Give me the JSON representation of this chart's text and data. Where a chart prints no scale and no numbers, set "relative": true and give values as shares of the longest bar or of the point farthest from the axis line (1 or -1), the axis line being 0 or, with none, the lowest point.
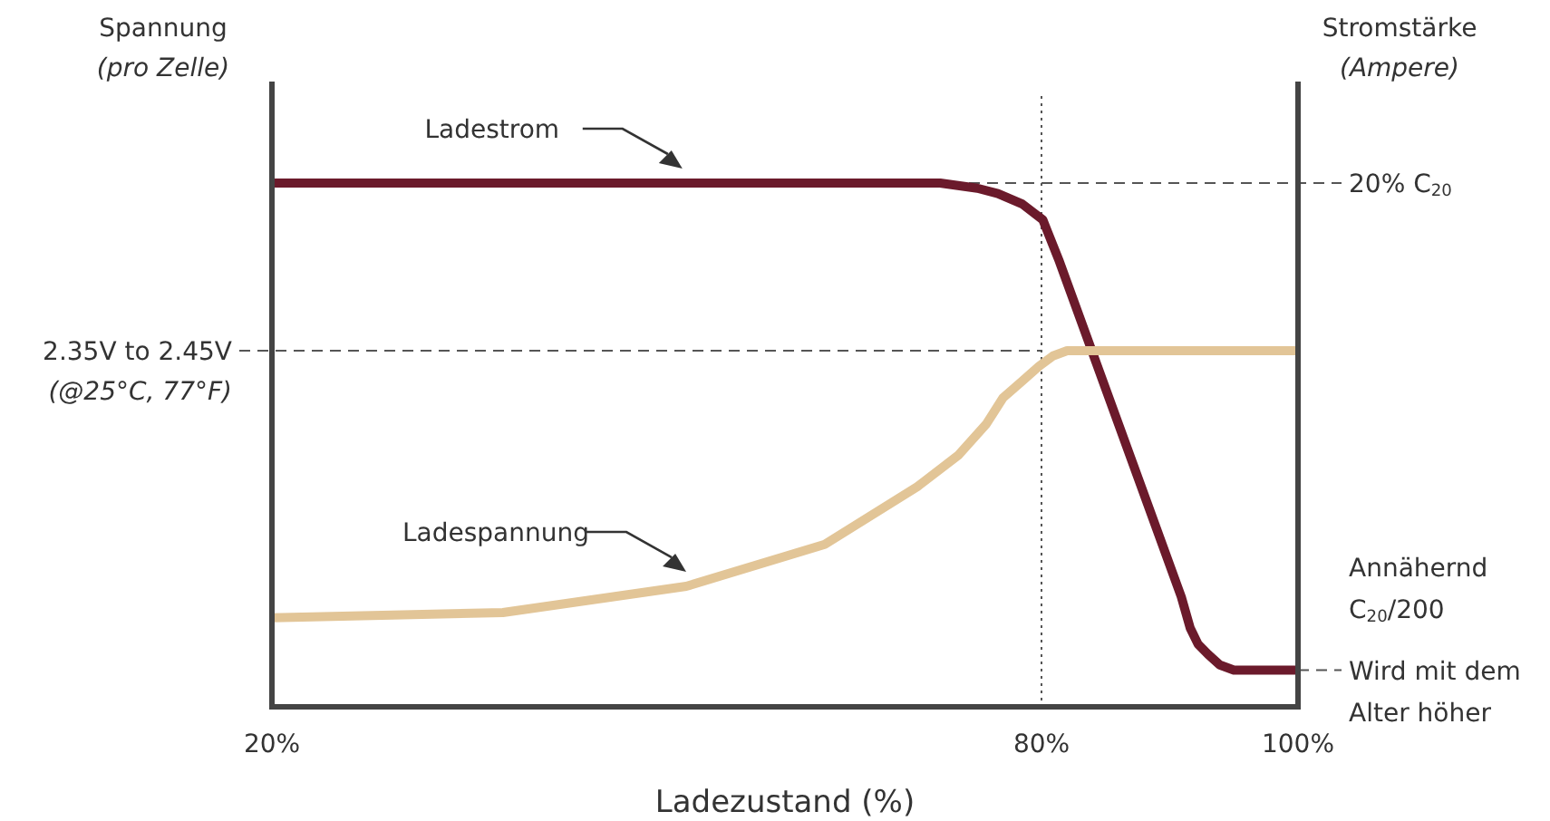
{
  "chart_data": {
    "type": "line",
    "relative": true,
    "xlabel": "Ladezustand (%)",
    "ylabel": "Spannung\n(pro Zelle)",
    "y2label": "Stromstärke\n(Ampere)",
    "xlim": [
      20,
      100
    ],
    "xticks": [
      {
        "value": 20,
        "label": "20%"
      },
      {
        "value": 80,
        "label": "80%"
      },
      {
        "value": 100,
        "label": "100%"
      }
    ],
    "series": [
      {
        "name": "Ladestrom",
        "color": "#6b1a2b",
        "x": [
          20,
          72.1,
          75,
          76.6,
          78.5,
          80.1,
          81.4,
          90.9,
          91.6,
          92.2,
          93,
          93.9,
          95,
          95.6,
          100
        ],
        "values": [
          1,
          1,
          0.99,
          0.98,
          0.96,
          0.93,
          0.85,
          0.21,
          0.15,
          0.12,
          0.1,
          0.08,
          0.07,
          0.07,
          0.07
        ]
      },
      {
        "name": "Ladespannung",
        "color": "#e2c597",
        "x": [
          20,
          38,
          52.3,
          63.1,
          70.3,
          73.5,
          75.7,
          77,
          78.4,
          79.8,
          80.9,
          82,
          83.1,
          100
        ],
        "values": [
          0.17,
          0.18,
          0.23,
          0.31,
          0.42,
          0.48,
          0.54,
          0.59,
          0.62,
          0.65,
          0.67,
          0.68,
          0.68,
          0.68
        ]
      }
    ],
    "ref_lines": [
      {
        "axis": "x",
        "value": 80,
        "line_style": "dotted"
      },
      {
        "axis": "y",
        "value": 0.68,
        "label": "2.35V to 2.45V\n(@25°C, 77°F)",
        "line_style": "dashed"
      },
      {
        "axis": "y",
        "value": 1,
        "label": "20% C$_{20}$",
        "line_style": "dashed"
      },
      {
        "axis": "y",
        "value": 0.07,
        "label": "Wird mit dem\nAlter höher",
        "line_style": "dashed"
      }
    ],
    "annotations": [
      "Annähernd\nC$_{20}$/200"
    ],
    "line_style": "solid"
  }
}
